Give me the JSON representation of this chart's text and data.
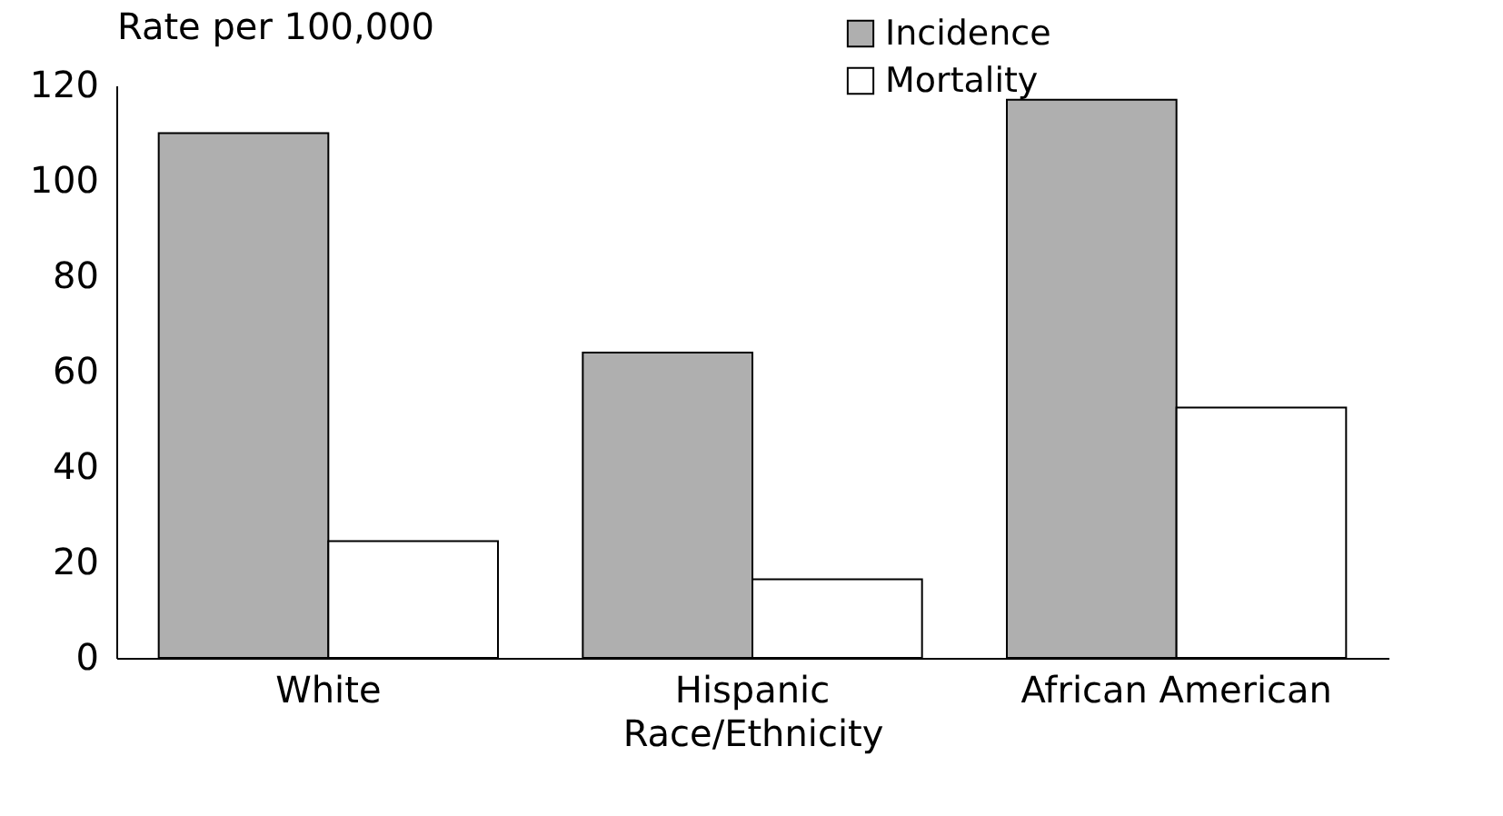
{
  "chart_data": {
    "type": "bar",
    "ylabel": "Rate per 100,000",
    "xlabel": "Race/Ethnicity",
    "categories": [
      "White",
      "Hispanic",
      "African American"
    ],
    "series": [
      {
        "name": "Incidence",
        "color": "#afafaf",
        "values": [
          110,
          64,
          117
        ]
      },
      {
        "name": "Mortality",
        "color": "#ffffff",
        "values": [
          24.5,
          16.5,
          52.5
        ]
      }
    ],
    "ylim": [
      0,
      120
    ],
    "yticks": [
      0,
      20,
      40,
      60,
      80,
      100,
      120
    ],
    "grid": false,
    "legend": "top"
  }
}
